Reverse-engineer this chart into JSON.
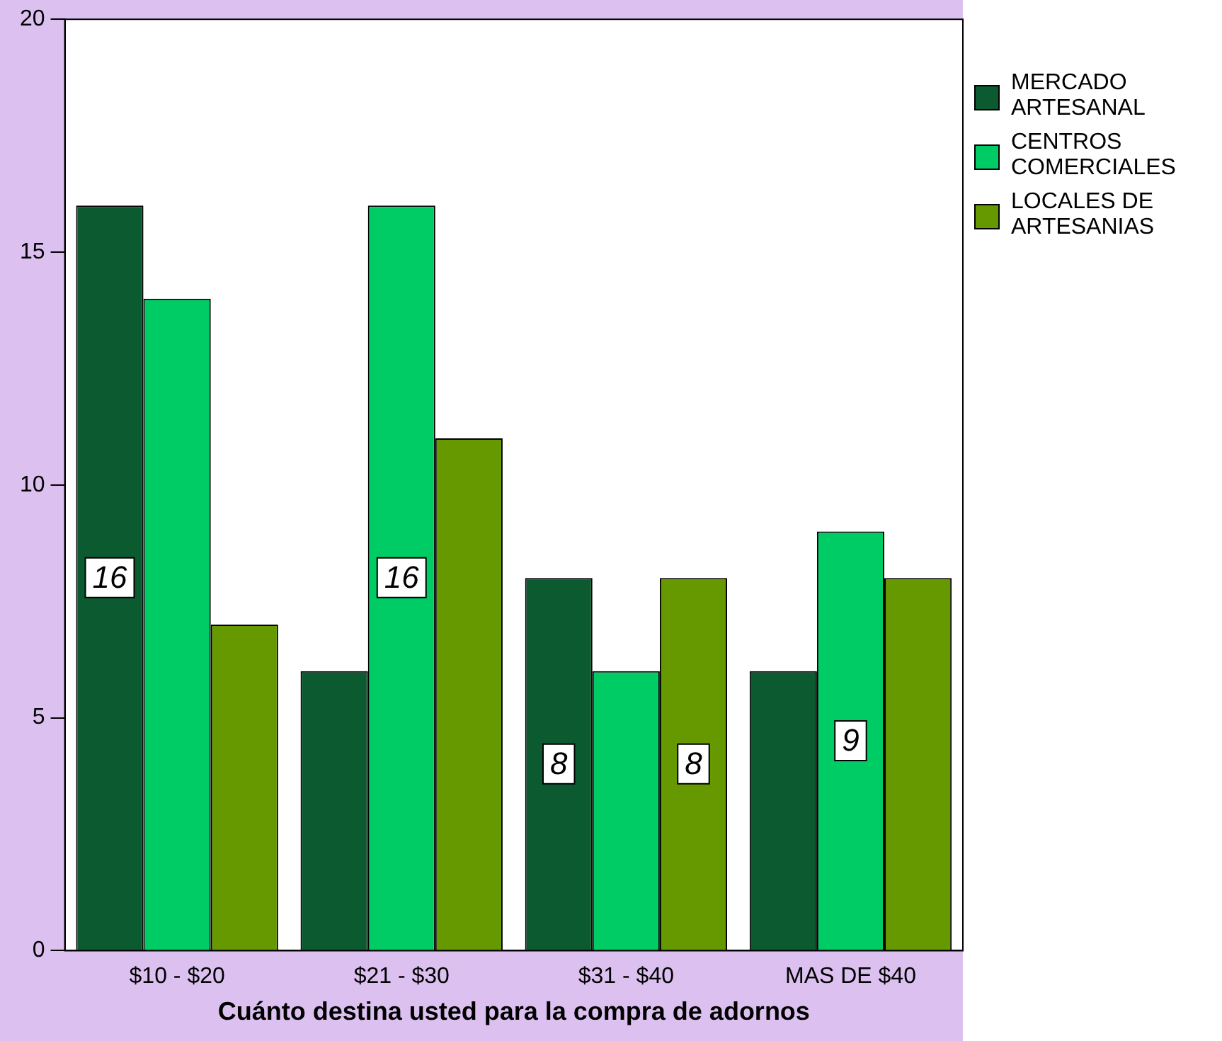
{
  "chart_data": {
    "type": "bar",
    "xlabel": "Cuánto destina usted para la compra de adornos",
    "categories": [
      "$10 - $20",
      "$21 - $30",
      "$31 - $40",
      "MAS DE $40"
    ],
    "series": [
      {
        "name": "MERCADO ARTESANAL",
        "color": "#0b5a30",
        "values": [
          16,
          6,
          8,
          6
        ],
        "value_labels": [
          "16",
          null,
          "8",
          null
        ]
      },
      {
        "name": "CENTROS COMERCIALES",
        "color": "#00cc66",
        "values": [
          14,
          16,
          6,
          9
        ],
        "value_labels": [
          null,
          "16",
          null,
          "9"
        ]
      },
      {
        "name": "LOCALES DE ARTESANIAS",
        "color": "#669900",
        "values": [
          7,
          11,
          8,
          8
        ],
        "value_labels": [
          null,
          null,
          "8",
          null
        ]
      }
    ],
    "ylim": [
      0,
      20
    ],
    "yticks": [
      0,
      5,
      10,
      15,
      20
    ],
    "grid": false,
    "legend": "right"
  }
}
